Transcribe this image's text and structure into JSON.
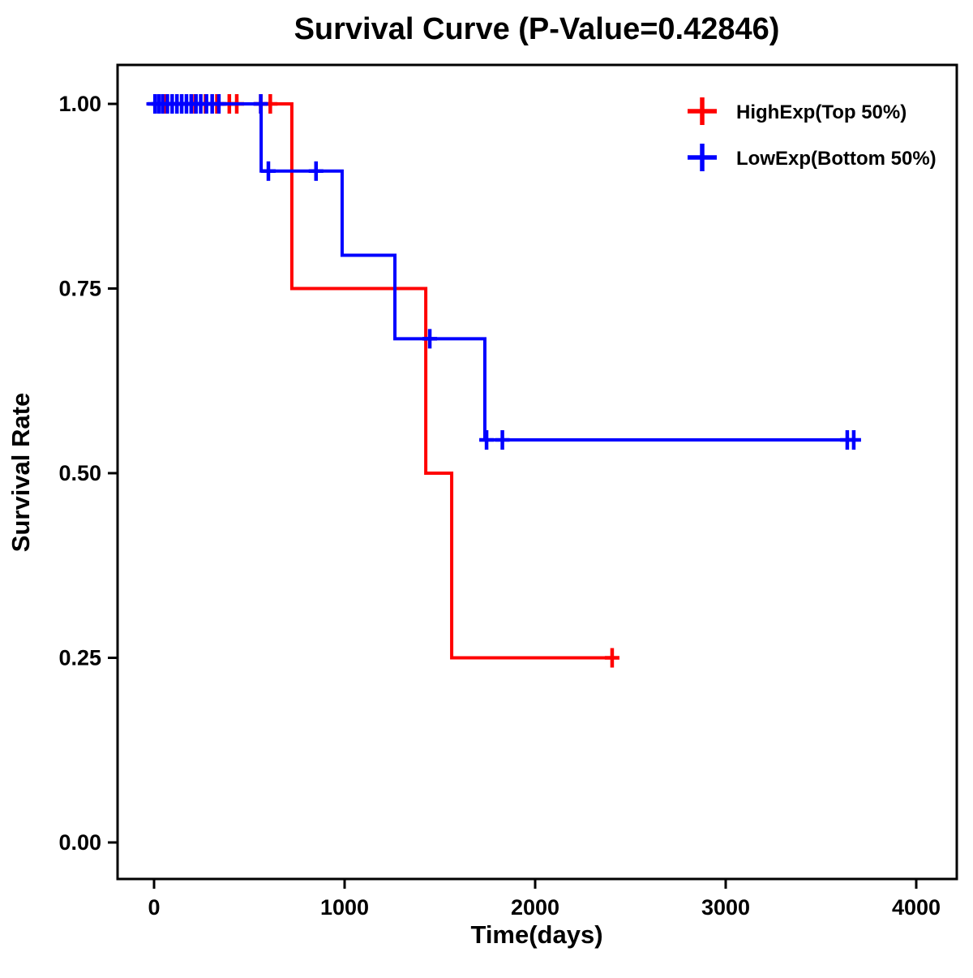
{
  "title": "Survival Curve (P-Value=0.42846)",
  "chart_data": {
    "type": "line",
    "subtype": "kaplan-meier-step-curve",
    "title": "Survival Curve (P-Value=0.42846)",
    "xlabel": "Time(days)",
    "ylabel": "Survival Rate",
    "xlim": [
      -230,
      4210
    ],
    "ylim": [
      -0.05,
      1.055
    ],
    "grid": false,
    "legend_position": "top-right",
    "xticks": [
      {
        "v": 0,
        "label": "0"
      },
      {
        "v": 1000,
        "label": "1000"
      },
      {
        "v": 2000,
        "label": "2000"
      },
      {
        "v": 3000,
        "label": "3000"
      },
      {
        "v": 4000,
        "label": "4000"
      }
    ],
    "yticks": [
      {
        "v": 0.0,
        "label": "0.00"
      },
      {
        "v": 0.25,
        "label": "0.25"
      },
      {
        "v": 0.5,
        "label": "0.50"
      },
      {
        "v": 0.75,
        "label": "0.75"
      },
      {
        "v": 1.0,
        "label": "1.00"
      }
    ],
    "series": [
      {
        "name": "HighExp(Top 50%)",
        "color": "#FF0000",
        "steps": [
          [
            -40,
            1.0
          ],
          [
            723,
            1.0
          ],
          [
            723,
            0.75
          ],
          [
            1426,
            0.75
          ],
          [
            1426,
            0.5
          ],
          [
            1562,
            0.5
          ],
          [
            1562,
            0.25
          ],
          [
            2404,
            0.25
          ]
        ],
        "censors": [
          [
            60,
            1.0
          ],
          [
            215,
            1.0
          ],
          [
            270,
            1.0
          ],
          [
            330,
            1.0
          ],
          [
            395,
            1.0
          ],
          [
            434,
            1.0
          ],
          [
            560,
            1.0
          ],
          [
            610,
            1.0
          ],
          [
            2404,
            0.25
          ]
        ]
      },
      {
        "name": "LowExp(Bottom 50%)",
        "color": "#0000FF",
        "steps": [
          [
            -40,
            1.0
          ],
          [
            562,
            1.0
          ],
          [
            562,
            0.909
          ],
          [
            987,
            0.909
          ],
          [
            987,
            0.795
          ],
          [
            1264,
            0.795
          ],
          [
            1264,
            0.682
          ],
          [
            1736,
            0.682
          ],
          [
            1736,
            0.545
          ],
          [
            3672,
            0.545
          ]
        ],
        "censors": [
          [
            5,
            1.0
          ],
          [
            25,
            1.0
          ],
          [
            45,
            1.0
          ],
          [
            70,
            1.0
          ],
          [
            95,
            1.0
          ],
          [
            120,
            1.0
          ],
          [
            145,
            1.0
          ],
          [
            170,
            1.0
          ],
          [
            195,
            1.0
          ],
          [
            220,
            1.0
          ],
          [
            245,
            1.0
          ],
          [
            275,
            1.0
          ],
          [
            305,
            1.0
          ],
          [
            340,
            1.0
          ],
          [
            560,
            1.0
          ],
          [
            600,
            0.909
          ],
          [
            850,
            0.909
          ],
          [
            1447,
            0.682
          ],
          [
            1745,
            0.545
          ],
          [
            1828,
            0.545
          ],
          [
            3638,
            0.545
          ],
          [
            3672,
            0.545
          ]
        ]
      }
    ]
  }
}
